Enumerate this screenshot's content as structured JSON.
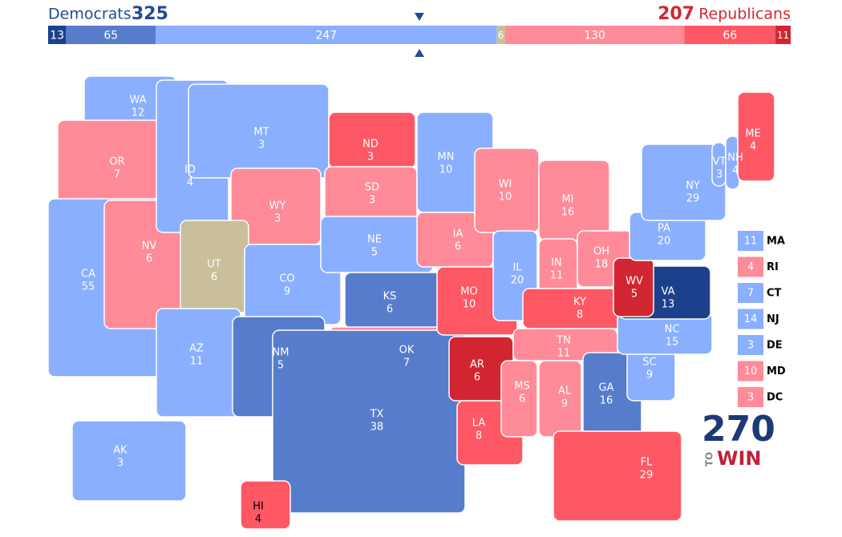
{
  "header": {
    "dem_label": "Democrats",
    "dem_total": 325,
    "rep_total": 207,
    "rep_label": "Republicans"
  },
  "ratings": {
    "safe-D": "#1c408c",
    "likely-D": "#577ccc",
    "lean-D": "#8aafff",
    "tossup": "#c9c09b",
    "lean-R": "#ff8b98",
    "likely-R": "#ff5865",
    "safe-R": "#d22532"
  },
  "bar": [
    {
      "rating": "safe-D",
      "value": 13
    },
    {
      "rating": "likely-D",
      "value": 65
    },
    {
      "rating": "lean-D",
      "value": 247
    },
    {
      "rating": "tossup",
      "value": 6
    },
    {
      "rating": "lean-R",
      "value": 130
    },
    {
      "rating": "likely-R",
      "value": 66
    },
    {
      "rating": "safe-R",
      "value": 11
    }
  ],
  "states": [
    {
      "abbr": "WA",
      "votes": 12,
      "rating": "lean-D"
    },
    {
      "abbr": "OR",
      "votes": 7,
      "rating": "lean-R"
    },
    {
      "abbr": "CA",
      "votes": 55,
      "rating": "lean-D"
    },
    {
      "abbr": "NV",
      "votes": 6,
      "rating": "lean-R"
    },
    {
      "abbr": "ID",
      "votes": 4,
      "rating": "lean-D"
    },
    {
      "abbr": "MT",
      "votes": 3,
      "rating": "lean-D"
    },
    {
      "abbr": "WY",
      "votes": 3,
      "rating": "lean-R"
    },
    {
      "abbr": "UT",
      "votes": 6,
      "rating": "tossup"
    },
    {
      "abbr": "AZ",
      "votes": 11,
      "rating": "lean-D"
    },
    {
      "abbr": "CO",
      "votes": 9,
      "rating": "lean-D"
    },
    {
      "abbr": "NM",
      "votes": 5,
      "rating": "likely-D"
    },
    {
      "abbr": "ND",
      "votes": 3,
      "rating": "likely-R"
    },
    {
      "abbr": "SD",
      "votes": 3,
      "rating": "lean-R"
    },
    {
      "abbr": "NE",
      "votes": 5,
      "rating": "lean-D"
    },
    {
      "abbr": "KS",
      "votes": 6,
      "rating": "likely-D"
    },
    {
      "abbr": "OK",
      "votes": 7,
      "rating": "lean-R"
    },
    {
      "abbr": "TX",
      "votes": 38,
      "rating": "likely-D"
    },
    {
      "abbr": "MN",
      "votes": 10,
      "rating": "lean-D"
    },
    {
      "abbr": "IA",
      "votes": 6,
      "rating": "lean-R"
    },
    {
      "abbr": "MO",
      "votes": 10,
      "rating": "likely-R"
    },
    {
      "abbr": "AR",
      "votes": 6,
      "rating": "safe-R"
    },
    {
      "abbr": "LA",
      "votes": 8,
      "rating": "likely-R"
    },
    {
      "abbr": "WI",
      "votes": 10,
      "rating": "lean-R"
    },
    {
      "abbr": "IL",
      "votes": 20,
      "rating": "lean-D"
    },
    {
      "abbr": "MI",
      "votes": 16,
      "rating": "lean-R"
    },
    {
      "abbr": "IN",
      "votes": 11,
      "rating": "lean-R"
    },
    {
      "abbr": "OH",
      "votes": 18,
      "rating": "lean-R"
    },
    {
      "abbr": "KY",
      "votes": 8,
      "rating": "likely-R"
    },
    {
      "abbr": "TN",
      "votes": 11,
      "rating": "lean-R"
    },
    {
      "abbr": "MS",
      "votes": 6,
      "rating": "lean-R"
    },
    {
      "abbr": "AL",
      "votes": 9,
      "rating": "lean-R"
    },
    {
      "abbr": "GA",
      "votes": 16,
      "rating": "likely-D"
    },
    {
      "abbr": "FL",
      "votes": 29,
      "rating": "likely-R"
    },
    {
      "abbr": "SC",
      "votes": 9,
      "rating": "lean-D"
    },
    {
      "abbr": "NC",
      "votes": 15,
      "rating": "lean-D"
    },
    {
      "abbr": "VA",
      "votes": 13,
      "rating": "safe-D"
    },
    {
      "abbr": "WV",
      "votes": 5,
      "rating": "safe-R"
    },
    {
      "abbr": "PA",
      "votes": 20,
      "rating": "lean-D"
    },
    {
      "abbr": "NY",
      "votes": 29,
      "rating": "lean-D"
    },
    {
      "abbr": "VT",
      "votes": 3,
      "rating": "lean-D"
    },
    {
      "abbr": "NH",
      "votes": 4,
      "rating": "lean-D"
    },
    {
      "abbr": "ME",
      "votes": 4,
      "rating": "likely-R"
    },
    {
      "abbr": "AK",
      "votes": 3,
      "rating": "lean-D"
    },
    {
      "abbr": "HI",
      "votes": 4,
      "rating": "likely-R"
    }
  ],
  "small_states": [
    {
      "abbr": "MA",
      "votes": 11,
      "rating": "lean-D"
    },
    {
      "abbr": "RI",
      "votes": 4,
      "rating": "lean-R"
    },
    {
      "abbr": "CT",
      "votes": 7,
      "rating": "lean-D"
    },
    {
      "abbr": "NJ",
      "votes": 14,
      "rating": "lean-D"
    },
    {
      "abbr": "DE",
      "votes": 3,
      "rating": "lean-D"
    },
    {
      "abbr": "MD",
      "votes": 10,
      "rating": "lean-R"
    },
    {
      "abbr": "DC",
      "votes": 3,
      "rating": "lean-R"
    }
  ],
  "logo": {
    "number": "270",
    "to": "TO",
    "win": "WIN"
  }
}
